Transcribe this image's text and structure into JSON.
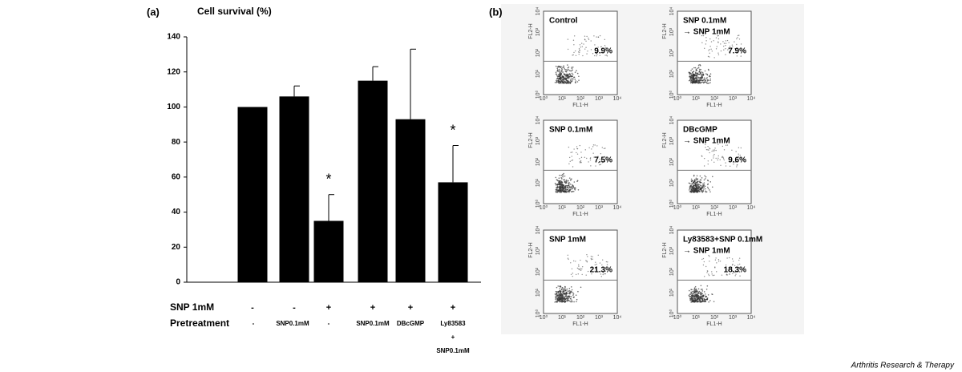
{
  "chart_data": [
    {
      "type": "bar",
      "label": "(a)",
      "title": "Cell survival (%)",
      "values": [
        100,
        106,
        35,
        115,
        93,
        57
      ],
      "errors": [
        0,
        6,
        15,
        8,
        40,
        21
      ],
      "annotations": [
        null,
        null,
        "*",
        null,
        null,
        "*"
      ],
      "rows": [
        {
          "name": "SNP  1mM",
          "labels": [
            [
              "-"
            ],
            [
              "-"
            ],
            [
              "+"
            ],
            [
              "+"
            ],
            [
              "+"
            ],
            [
              "+"
            ]
          ]
        },
        {
          "name": "Pretreatment",
          "labels": [
            [
              "-"
            ],
            [
              "SNP0.1mM"
            ],
            [
              "-"
            ],
            [
              "SNP0.1mM"
            ],
            [
              "DBcGMP"
            ],
            [
              "Ly83583",
              "+",
              "SNP0.1mM"
            ]
          ]
        }
      ],
      "color": "#000000",
      "ylim": [
        0,
        140
      ],
      "yticks": [
        0,
        20,
        40,
        60,
        80,
        100,
        120,
        140
      ]
    },
    {
      "type": "flow",
      "label": "(b)",
      "xlabel": "FL1-H",
      "ylabel": "FL2-H",
      "ticks": [
        {
          "value": 0,
          "label": "10⁰"
        },
        {
          "value": 1,
          "label": "10¹"
        },
        {
          "value": 2,
          "label": "10²"
        },
        {
          "value": 3,
          "label": "10³"
        },
        {
          "value": 4,
          "label": "10⁴"
        }
      ],
      "panels": [
        {
          "lines": [
            "Control"
          ],
          "percent": 9.9,
          "percent_label": "9.9%"
        },
        {
          "lines": [
            "SNP 0.1mM",
            "→ SNP 1mM"
          ],
          "percent": 7.9,
          "percent_label": "7.9%"
        },
        {
          "lines": [
            "SNP 0.1mM"
          ],
          "percent": 7.5,
          "percent_label": "7.5%"
        },
        {
          "lines": [
            "DBcGMP",
            "→ SNP 1mM"
          ],
          "percent": 9.6,
          "percent_label": "9.6%"
        },
        {
          "lines": [
            "SNP 1mM"
          ],
          "percent": 21.3,
          "percent_label": "21.3%"
        },
        {
          "lines": [
            "Ly83583+SNP 0.1mM",
            "→ SNP 1mM"
          ],
          "percent": 18.3,
          "percent_label": "18.3%"
        }
      ]
    }
  ],
  "credit": "Arthritis Research & Therapy"
}
